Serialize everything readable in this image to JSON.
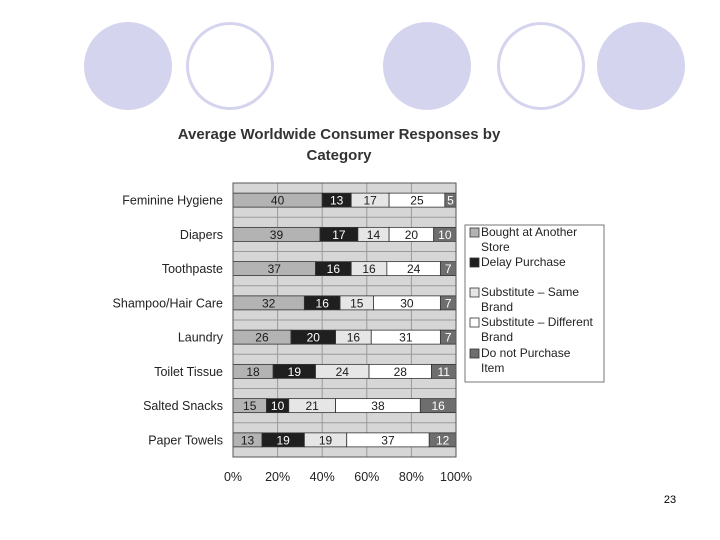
{
  "slide": {
    "page_number": "23"
  },
  "decor": {
    "circle_fill": "#d4d4ee"
  },
  "chart_data": {
    "type": "bar",
    "orientation": "horizontal",
    "stacked": true,
    "title": "Average Worldwide Consumer Responses by Category",
    "title_lines": [
      "Average Worldwide Consumer Responses by",
      "Category"
    ],
    "categories": [
      "Feminine Hygiene",
      "Diapers",
      "Toothpaste",
      "Shampoo/Hair Care",
      "Laundry",
      "Toilet Tissue",
      "Salted Snacks",
      "Paper Towels"
    ],
    "series": [
      {
        "name": "Bought at Another Store",
        "legend_lines": [
          "Bought at Another",
          "Store"
        ],
        "color": "#b3b3b3",
        "label_color": "#1a1a1a",
        "values": [
          40,
          39,
          37,
          32,
          26,
          18,
          15,
          13
        ]
      },
      {
        "name": "Delay Purchase",
        "legend_lines": [
          "Delay Purchase"
        ],
        "color": "#1f1f1f",
        "label_color": "#ffffff",
        "values": [
          13,
          17,
          16,
          16,
          20,
          19,
          10,
          19
        ]
      },
      {
        "name": "Substitute – Same Brand",
        "legend_lines": [
          "Substitute – Same",
          "Brand"
        ],
        "color": "#e6e6e6",
        "label_color": "#1a1a1a",
        "values": [
          17,
          14,
          16,
          15,
          16,
          24,
          21,
          19
        ]
      },
      {
        "name": "Substitute – Different Brand",
        "legend_lines": [
          "Substitute – Different",
          "Brand"
        ],
        "color": "#ffffff",
        "label_color": "#1a1a1a",
        "values": [
          25,
          20,
          24,
          30,
          31,
          28,
          38,
          37
        ]
      },
      {
        "name": "Do not Purchase Item",
        "legend_lines": [
          "Do not Purchase",
          "Item"
        ],
        "color": "#6e6e6e",
        "label_color": "#ffffff",
        "values": [
          5,
          10,
          7,
          7,
          7,
          11,
          16,
          12
        ]
      }
    ],
    "x_ticks": [
      "0%",
      "20%",
      "40%",
      "60%",
      "80%",
      "100%"
    ],
    "xlim": [
      0,
      100
    ],
    "grid": true,
    "legend_position": "right",
    "plot_background": "#d6d6d6"
  }
}
